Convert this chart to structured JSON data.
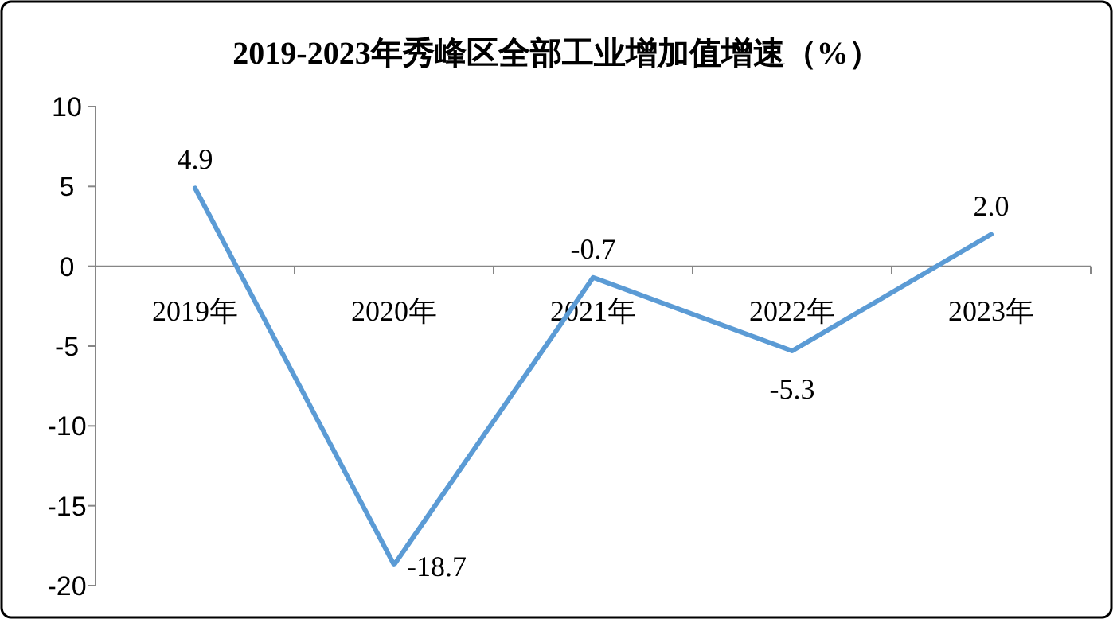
{
  "chart_data": {
    "type": "line",
    "title": "2019-2023年秀峰区全部工业增加值增速（%）",
    "categories": [
      "2019年",
      "2020年",
      "2021年",
      "2022年",
      "2023年"
    ],
    "series": [
      {
        "color": "#5b9bd5",
        "values": [
          4.9,
          -18.7,
          -0.7,
          -5.3,
          2.0
        ],
        "value_labels": [
          "4.9",
          "-18.7",
          "-0.7",
          "-5.3",
          "2.0"
        ]
      }
    ],
    "ylim": [
      -20,
      10
    ],
    "yticks": [
      -20,
      -15,
      -10,
      -5,
      0,
      5,
      10
    ],
    "grid": false,
    "marker": "none",
    "line_style": "solid"
  }
}
